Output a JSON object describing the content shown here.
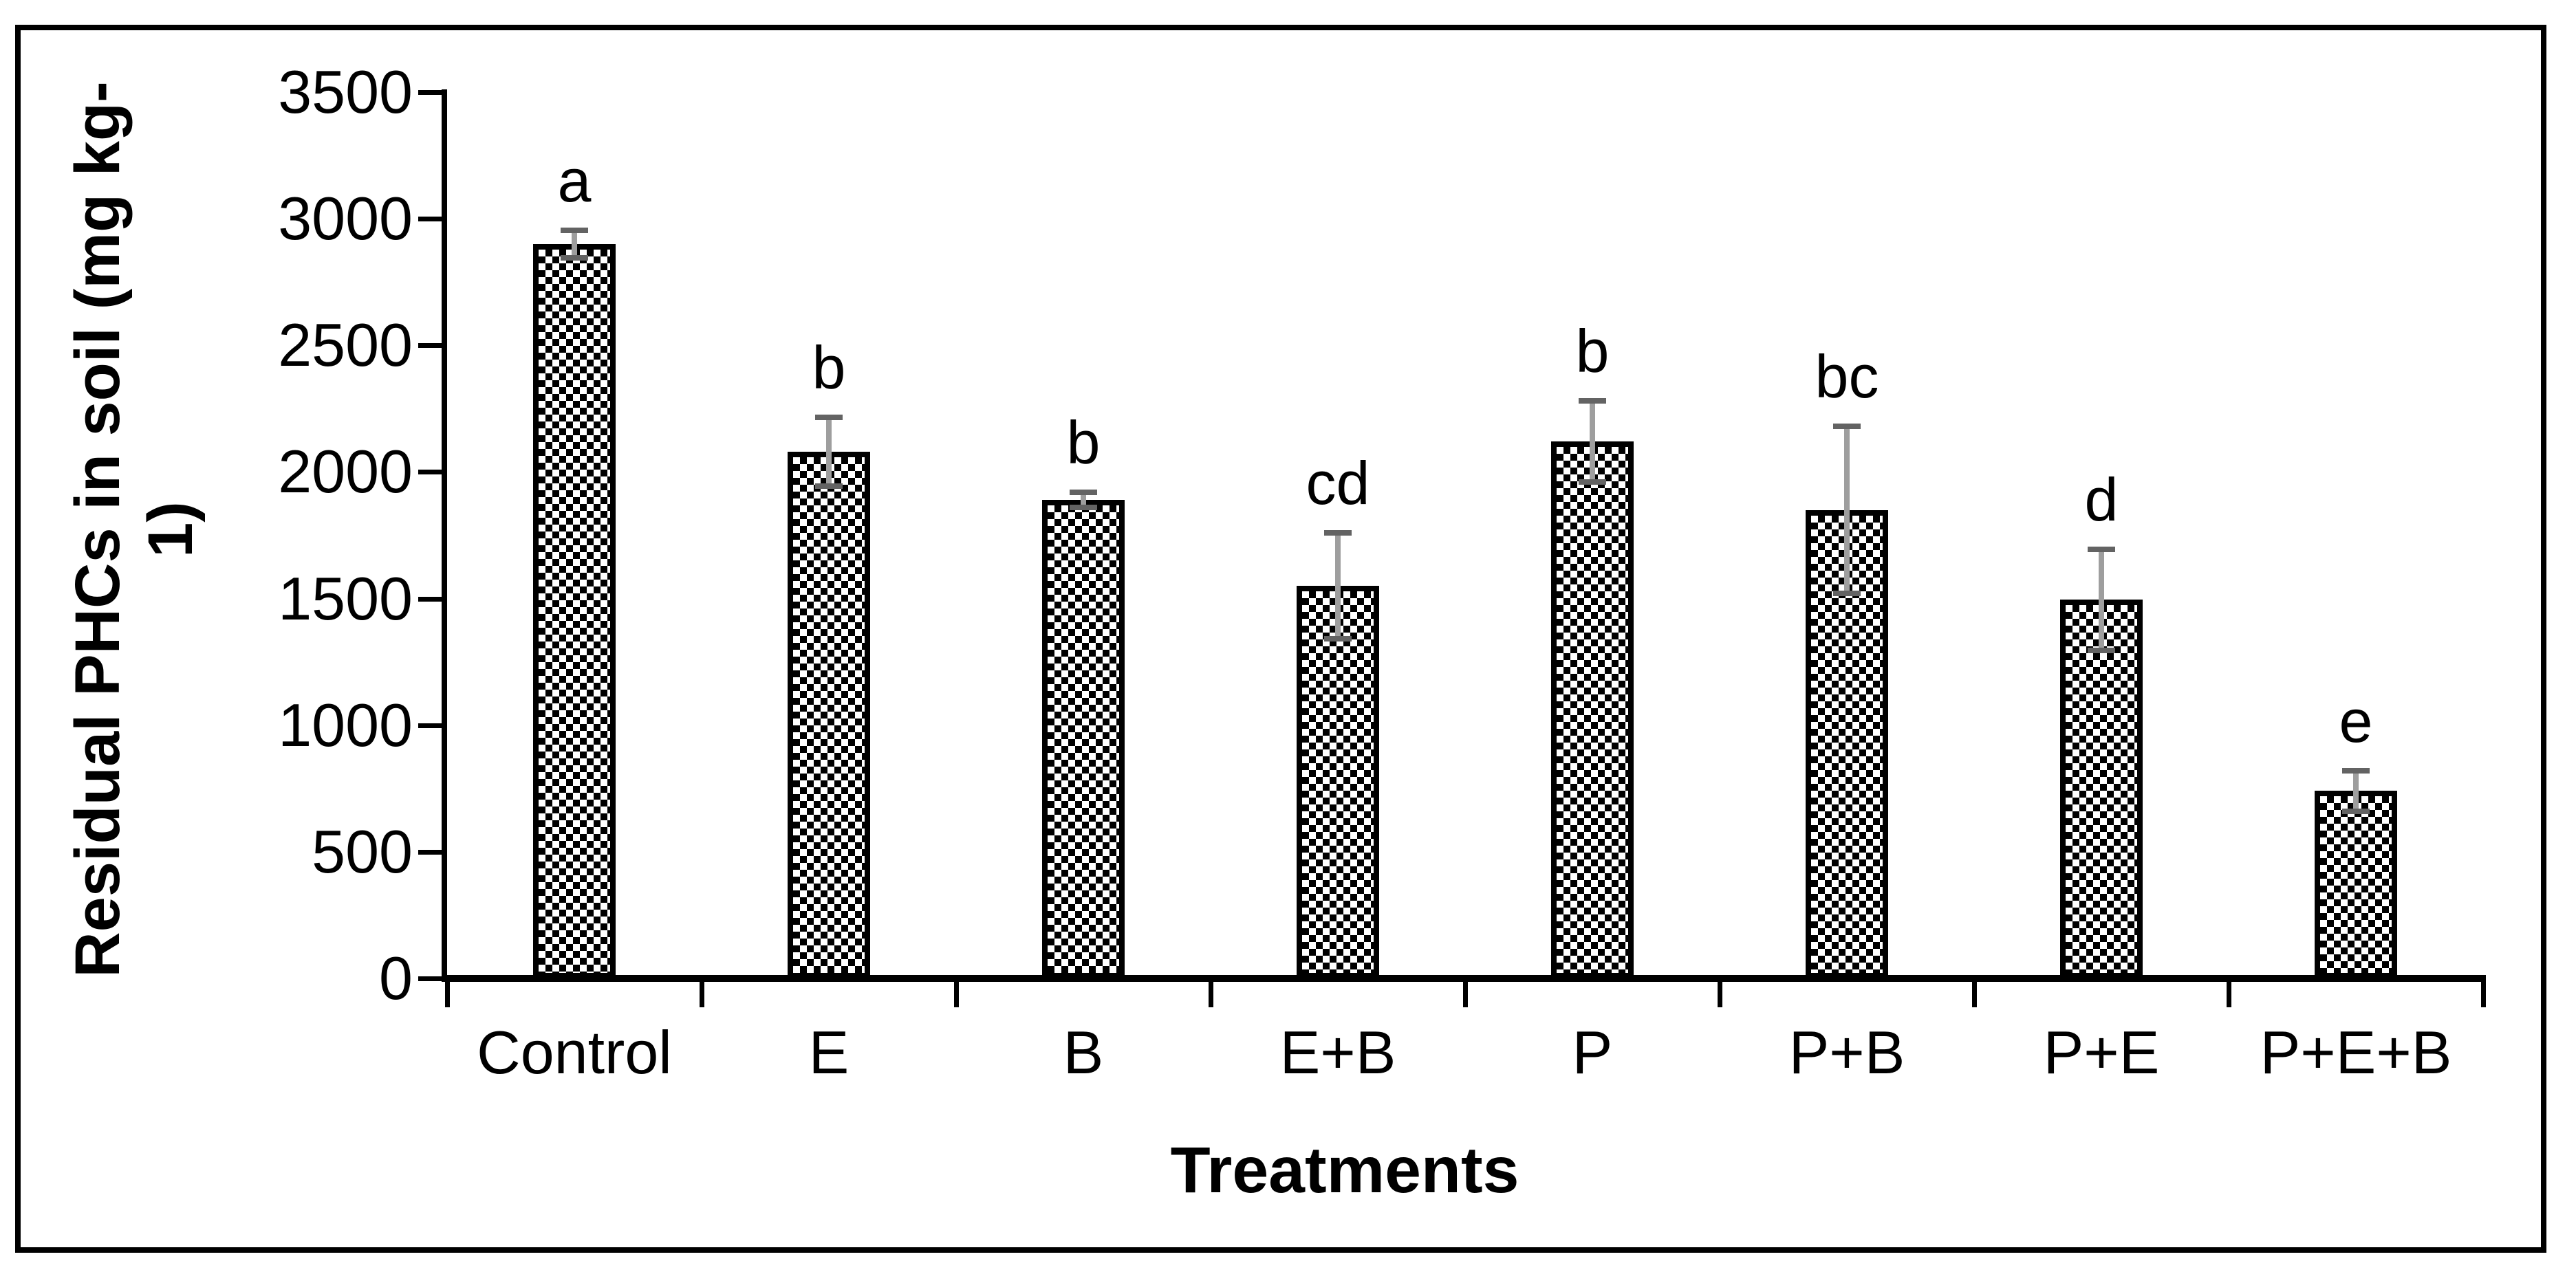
{
  "figure": {
    "background": "#ffffff",
    "border_color": "#000000"
  },
  "chart_data": {
    "type": "bar",
    "title": "",
    "xlabel": "Treatments",
    "ylabel": "Residual PHCs in soil (mg kg-1)",
    "ylabel_line1": "Residual PHCs in soil (mg kg-",
    "ylabel_line2": "1)",
    "categories": [
      "Control",
      "E",
      "B",
      "E+B",
      "P",
      "P+B",
      "P+E",
      "P+E+B"
    ],
    "values": [
      2900,
      2080,
      1890,
      1550,
      2120,
      1850,
      1495,
      740
    ],
    "error_bars": [
      55,
      135,
      30,
      210,
      160,
      330,
      200,
      80
    ],
    "significance_letters": [
      "a",
      "b",
      "b",
      "cd",
      "b",
      "bc",
      "d",
      "e"
    ],
    "ylim": [
      0,
      3500
    ],
    "ytick_interval": 500,
    "yticks": [
      0,
      500,
      1000,
      1500,
      2000,
      2500,
      3000,
      3500
    ],
    "grid": false,
    "legend": false,
    "bar_fill": "black-white-diagonal-checkerboard",
    "bar_border_color": "#000000",
    "error_bar_line_color": "#9e9e9e",
    "error_bar_cap_color": "#636363"
  }
}
